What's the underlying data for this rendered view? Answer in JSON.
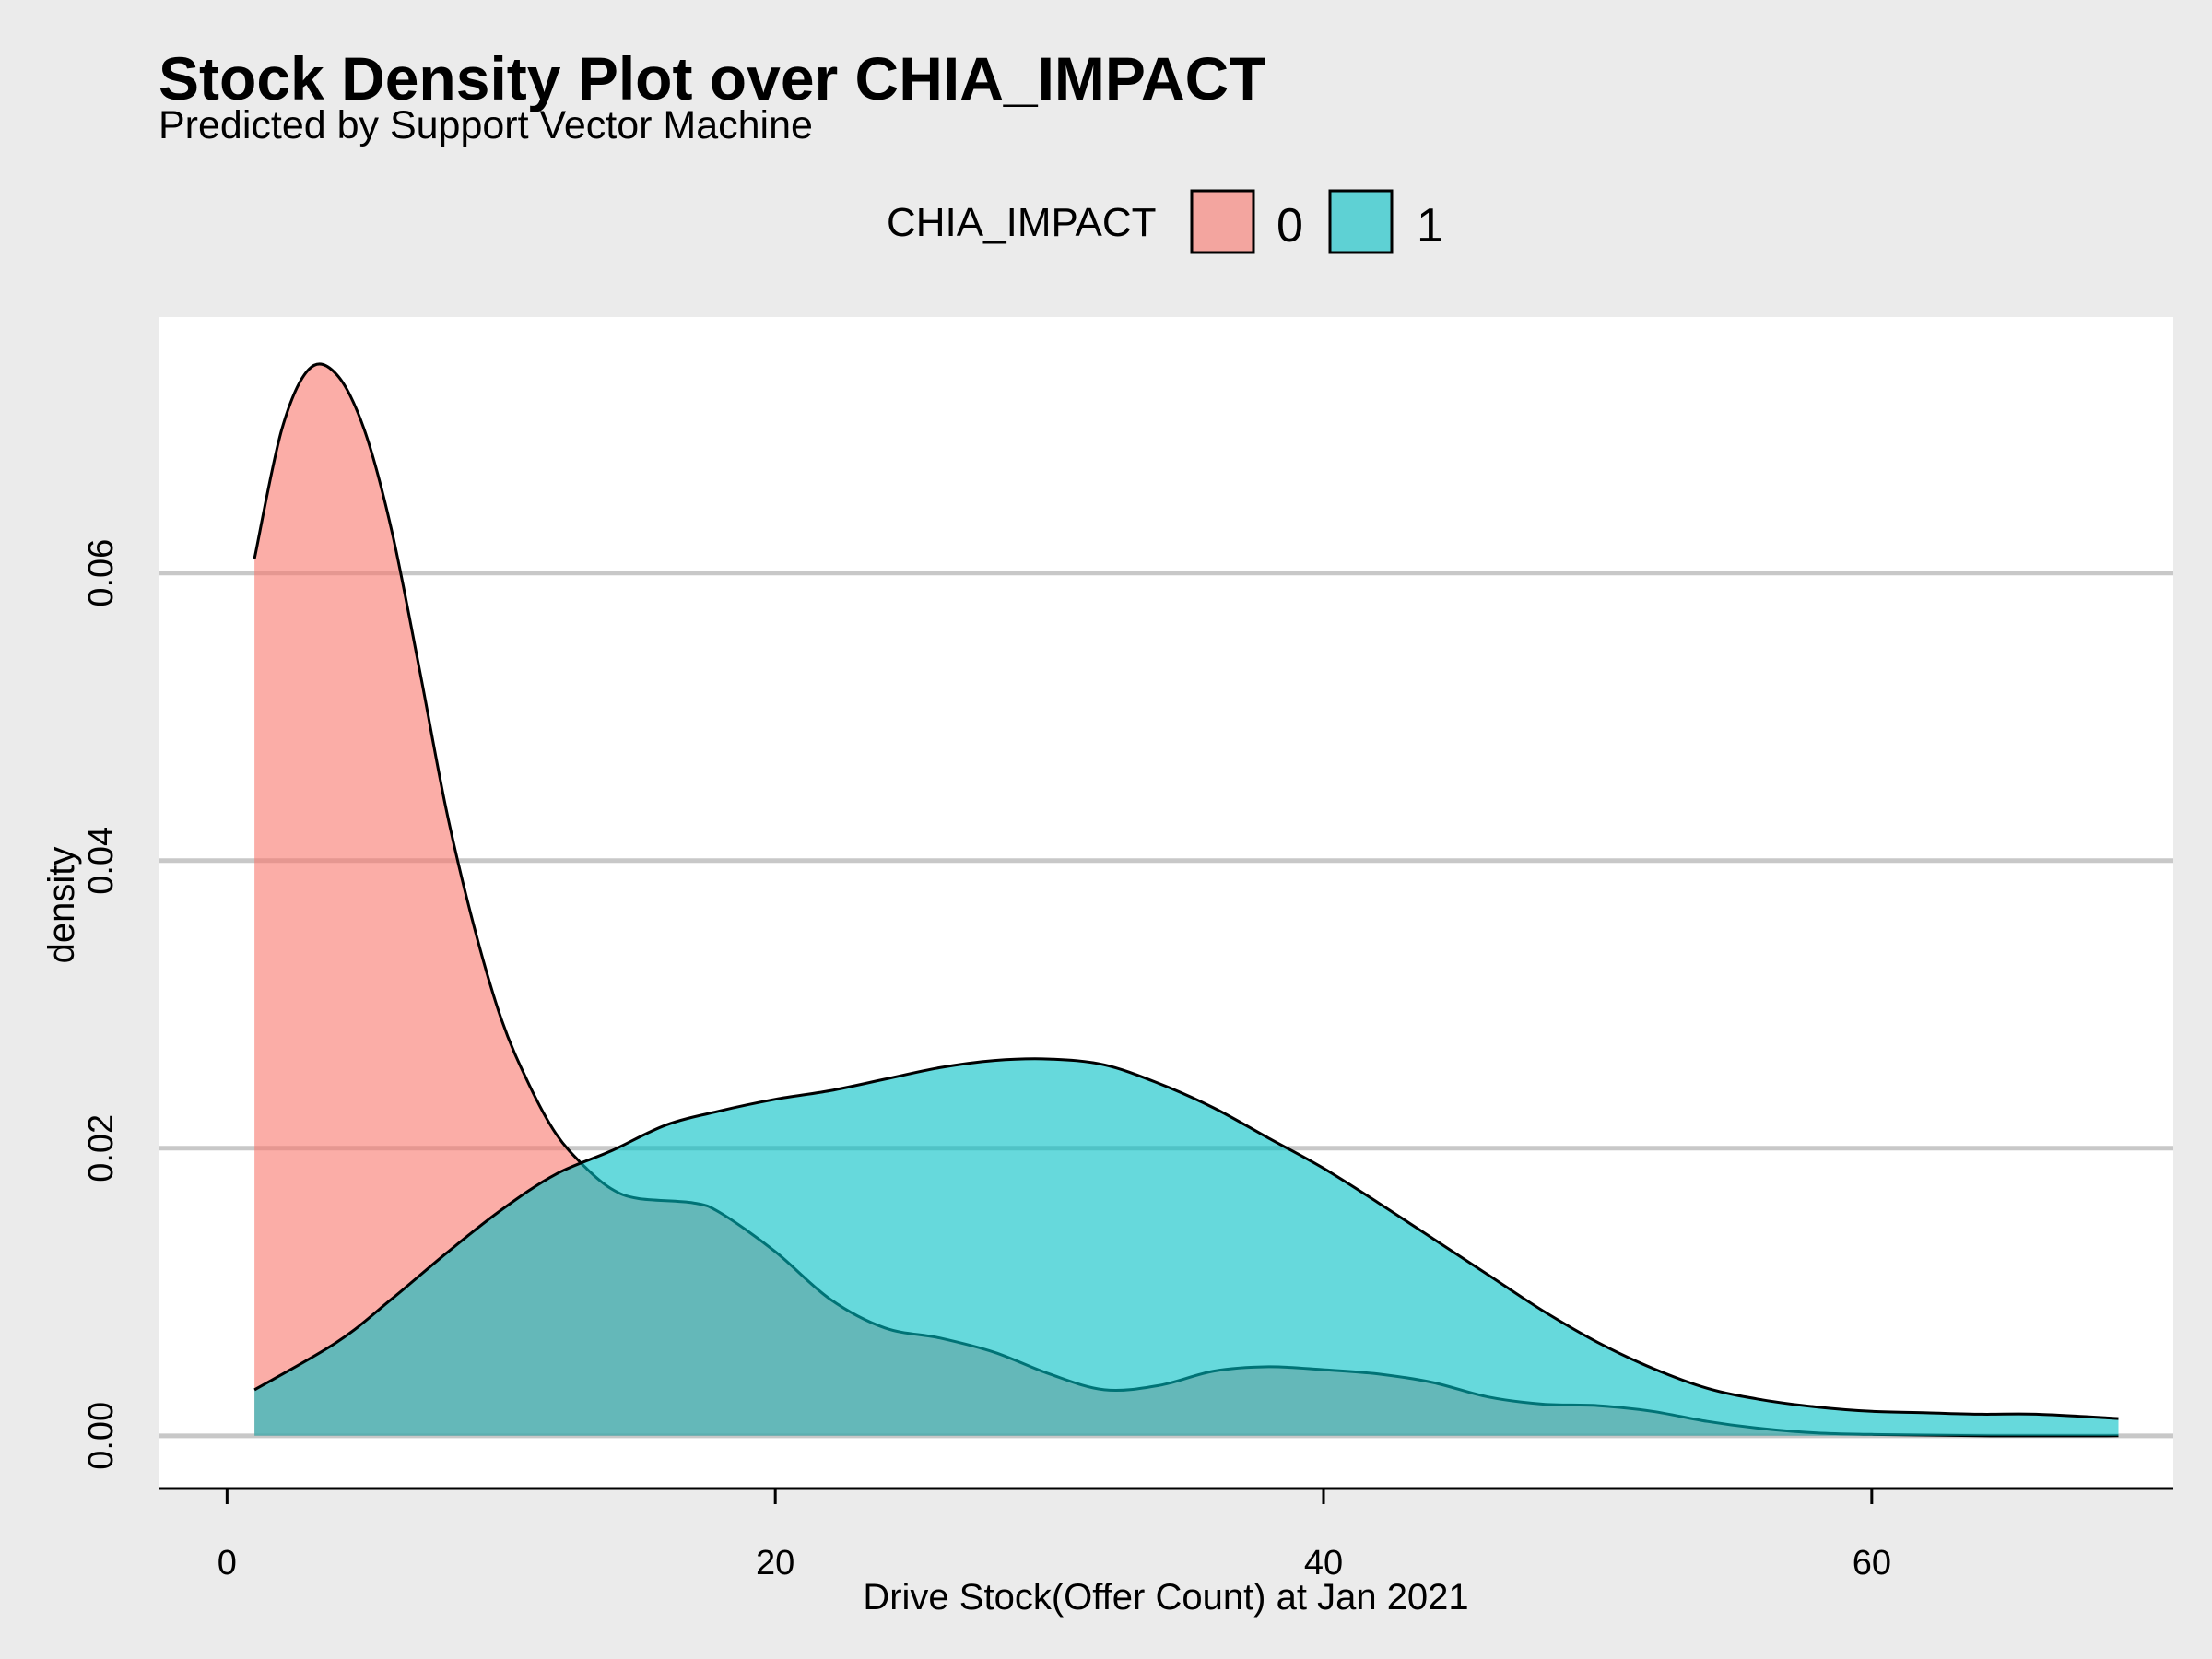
{
  "chart_data": {
    "type": "area",
    "title": "Stock Density Plot over CHIA_IMPACT",
    "subtitle": "Predicted by Support Vector Machine",
    "xlabel": "Drive Stock(Offer Count) at Jan 2021",
    "ylabel": "density",
    "xlim": [
      -2.5,
      71
    ],
    "ylim": [
      -0.0036,
      0.0778
    ],
    "x_ticks": [
      0,
      20,
      40,
      60
    ],
    "x_tick_labels": [
      "0",
      "20",
      "40",
      "60"
    ],
    "y_ticks": [
      0,
      0.02,
      0.04,
      0.06
    ],
    "y_tick_labels": [
      "0.00",
      "0.02",
      "0.04",
      "0.06"
    ],
    "grid": "horizontal major lines",
    "legend": {
      "title": "CHIA_IMPACT",
      "position": "top",
      "entries": [
        "0",
        "1"
      ]
    },
    "series": [
      {
        "name": "0",
        "color": "#f8766d",
        "x": [
          1,
          2,
          3,
          4,
          5,
          6,
          7,
          8,
          9,
          10,
          11,
          12,
          13,
          14,
          15,
          17,
          18,
          20,
          22,
          24,
          26,
          28,
          30,
          32,
          34,
          36,
          38,
          40,
          42,
          44,
          46,
          48,
          50,
          52,
          54,
          56,
          58,
          60,
          64,
          69
        ],
        "y": [
          0.061,
          0.07,
          0.0742,
          0.0738,
          0.07,
          0.063,
          0.0535,
          0.0435,
          0.0355,
          0.029,
          0.0245,
          0.021,
          0.0188,
          0.0172,
          0.0165,
          0.0162,
          0.0155,
          0.0128,
          0.0095,
          0.0075,
          0.0068,
          0.0058,
          0.0043,
          0.0032,
          0.0035,
          0.0045,
          0.0048,
          0.0046,
          0.0043,
          0.0037,
          0.0027,
          0.0022,
          0.0021,
          0.0017,
          0.001,
          0.0005,
          0.0002,
          0.0001,
          0.0,
          0.0
        ]
      },
      {
        "name": "1",
        "color": "#00bfc4",
        "x": [
          1,
          4,
          6,
          8,
          10,
          12,
          14,
          16,
          18,
          20,
          22,
          24,
          26,
          28,
          30,
          32,
          34,
          36,
          38,
          40,
          42,
          44,
          46,
          48,
          50,
          52,
          54,
          56,
          58,
          60,
          62,
          64,
          66,
          69
        ],
        "y": [
          0.0032,
          0.0065,
          0.0095,
          0.0127,
          0.0157,
          0.0182,
          0.0198,
          0.0216,
          0.0226,
          0.0234,
          0.024,
          0.0248,
          0.0256,
          0.0261,
          0.0262,
          0.0258,
          0.0245,
          0.0228,
          0.0207,
          0.0186,
          0.0162,
          0.0137,
          0.0112,
          0.0087,
          0.0065,
          0.0047,
          0.0033,
          0.0025,
          0.002,
          0.0017,
          0.0016,
          0.0015,
          0.0015,
          0.0012
        ]
      }
    ]
  }
}
